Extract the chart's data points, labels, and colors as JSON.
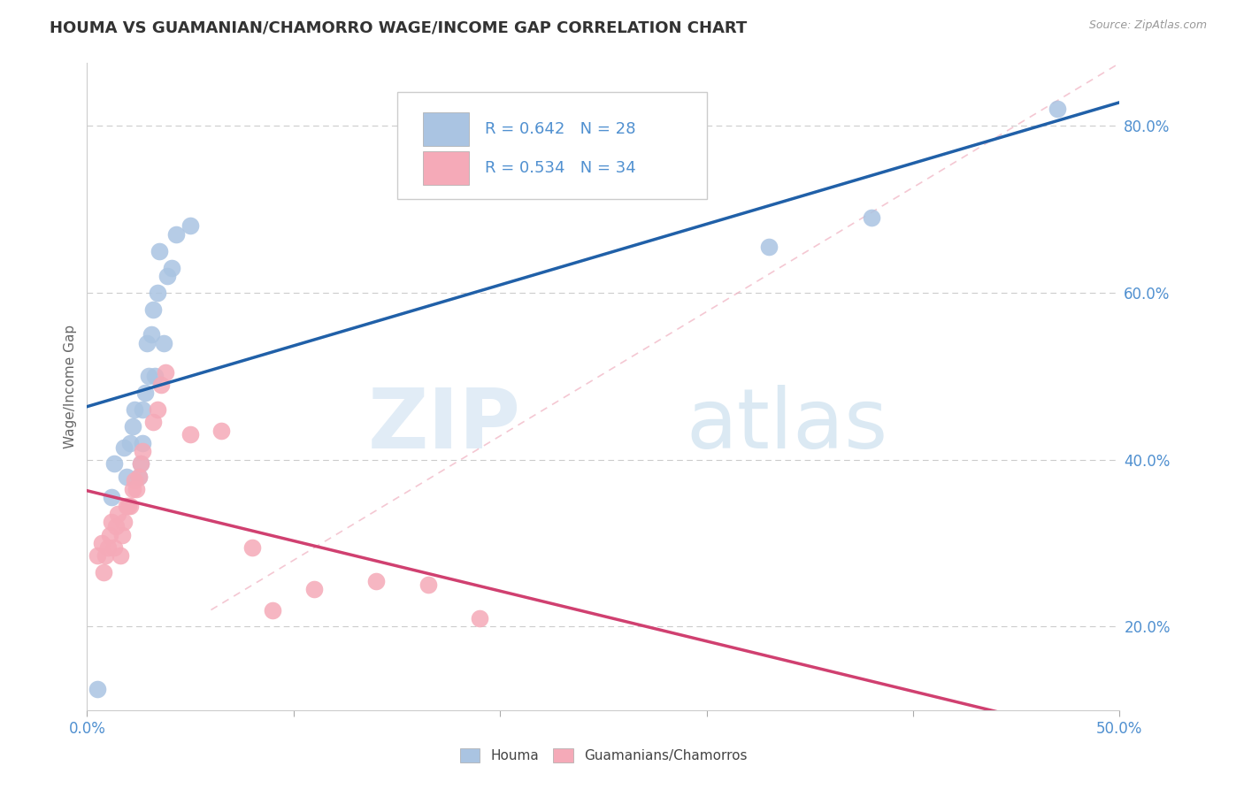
{
  "title": "HOUMA VS GUAMANIAN/CHAMORRO WAGE/INCOME GAP CORRELATION CHART",
  "source": "Source: ZipAtlas.com",
  "ylabel": "Wage/Income Gap",
  "watermark_zip": "ZIP",
  "watermark_atlas": "atlas",
  "xmin": 0.0,
  "xmax": 0.5,
  "ymin": 0.1,
  "ymax": 0.875,
  "legend_labels": [
    "Houma",
    "Guamanians/Chamorros"
  ],
  "houma_R": 0.642,
  "houma_N": 28,
  "guam_R": 0.534,
  "guam_N": 34,
  "houma_color": "#aac4e2",
  "houma_line_color": "#2060a8",
  "guam_color": "#f5aab8",
  "guam_line_color": "#d04070",
  "diag_color": "#f0b0c0",
  "background_color": "#ffffff",
  "grid_color": "#cccccc",
  "ytick_color": "#5090d0",
  "xtick_color": "#5090d0",
  "houma_x": [
    0.005,
    0.012,
    0.013,
    0.018,
    0.019,
    0.021,
    0.022,
    0.023,
    0.025,
    0.026,
    0.027,
    0.027,
    0.028,
    0.029,
    0.03,
    0.031,
    0.032,
    0.033,
    0.034,
    0.035,
    0.037,
    0.039,
    0.041,
    0.043,
    0.05,
    0.33,
    0.38,
    0.47
  ],
  "houma_y": [
    0.125,
    0.355,
    0.395,
    0.415,
    0.38,
    0.42,
    0.44,
    0.46,
    0.38,
    0.395,
    0.42,
    0.46,
    0.48,
    0.54,
    0.5,
    0.55,
    0.58,
    0.5,
    0.6,
    0.65,
    0.54,
    0.62,
    0.63,
    0.67,
    0.68,
    0.655,
    0.69,
    0.82
  ],
  "guam_x": [
    0.005,
    0.007,
    0.008,
    0.009,
    0.01,
    0.011,
    0.012,
    0.013,
    0.014,
    0.015,
    0.016,
    0.017,
    0.018,
    0.019,
    0.02,
    0.021,
    0.022,
    0.023,
    0.024,
    0.025,
    0.026,
    0.027,
    0.032,
    0.034,
    0.036,
    0.038,
    0.05,
    0.065,
    0.08,
    0.09,
    0.11,
    0.14,
    0.165,
    0.19
  ],
  "guam_y": [
    0.285,
    0.3,
    0.265,
    0.285,
    0.295,
    0.31,
    0.325,
    0.295,
    0.32,
    0.335,
    0.285,
    0.31,
    0.325,
    0.345,
    0.345,
    0.345,
    0.365,
    0.375,
    0.365,
    0.38,
    0.395,
    0.41,
    0.445,
    0.46,
    0.49,
    0.505,
    0.43,
    0.435,
    0.295,
    0.22,
    0.245,
    0.255,
    0.25,
    0.21
  ]
}
